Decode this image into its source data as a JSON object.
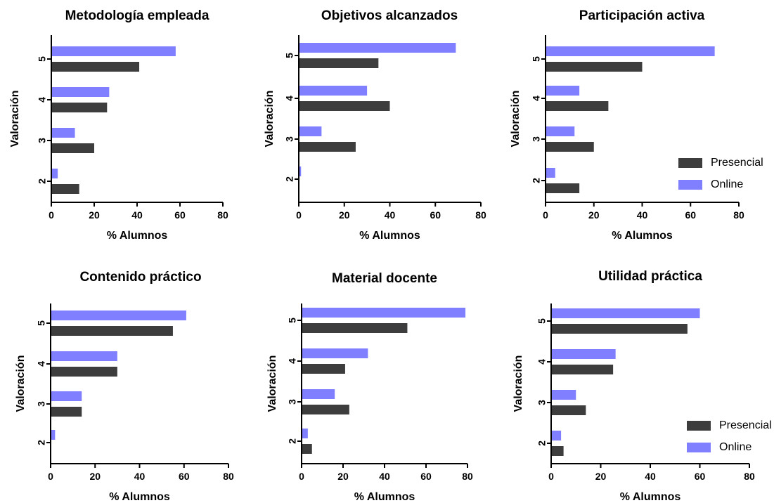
{
  "colors": {
    "presencial": "#3d3d3d",
    "online": "#7f7fff"
  },
  "chart_data": [
    {
      "type": "bar",
      "orientation": "horizontal",
      "title": "Metodología empleada",
      "xlabel": "% Alumnos",
      "ylabel": "Valoración",
      "categories": [
        "5",
        "4",
        "3",
        "2"
      ],
      "xlim": [
        0,
        80
      ],
      "xticks": [
        "0",
        "20",
        "40",
        "60",
        "80"
      ],
      "series": [
        {
          "name": "Online",
          "values": [
            58,
            27,
            11,
            3
          ]
        },
        {
          "name": "Presencial",
          "values": [
            41,
            26,
            20,
            13
          ]
        }
      ],
      "legend": null
    },
    {
      "type": "bar",
      "orientation": "horizontal",
      "title": "Objetivos alcanzados",
      "xlabel": "% Alumnos",
      "ylabel": "Valoración",
      "categories": [
        "5",
        "4",
        "3",
        "2"
      ],
      "xlim": [
        0,
        80
      ],
      "xticks": [
        "0",
        "20",
        "40",
        "60",
        "80"
      ],
      "series": [
        {
          "name": "Online",
          "values": [
            69,
            30,
            10,
            1
          ]
        },
        {
          "name": "Presencial",
          "values": [
            35,
            40,
            25,
            0
          ]
        }
      ],
      "legend": null
    },
    {
      "type": "bar",
      "orientation": "horizontal",
      "title": "Participación activa",
      "xlabel": "% Alumnos",
      "ylabel": "Valoración",
      "categories": [
        "5",
        "4",
        "3",
        "2"
      ],
      "xlim": [
        0,
        80
      ],
      "xticks": [
        "0",
        "20",
        "40",
        "60",
        "80"
      ],
      "series": [
        {
          "name": "Online",
          "values": [
            70,
            14,
            12,
            4
          ]
        },
        {
          "name": "Presencial",
          "values": [
            40,
            26,
            20,
            14
          ]
        }
      ],
      "legend": {
        "position": "bottom-right",
        "entries": [
          "Presencial",
          "Online"
        ]
      }
    },
    {
      "type": "bar",
      "orientation": "horizontal",
      "title": "Contenido práctico",
      "xlabel": "% Alumnos",
      "ylabel": "Valoración",
      "categories": [
        "5",
        "4",
        "3",
        "2"
      ],
      "xlim": [
        0,
        80
      ],
      "xticks": [
        "0",
        "20",
        "40",
        "60",
        "80"
      ],
      "series": [
        {
          "name": "Online",
          "values": [
            61,
            30,
            14,
            2
          ]
        },
        {
          "name": "Presencial",
          "values": [
            55,
            30,
            14,
            0
          ]
        }
      ],
      "legend": null
    },
    {
      "type": "bar",
      "orientation": "horizontal",
      "title": "Material docente",
      "xlabel": "% Alumnos",
      "ylabel": "Valoración",
      "categories": [
        "5",
        "4",
        "3",
        "2"
      ],
      "xlim": [
        0,
        80
      ],
      "xticks": [
        "0",
        "20",
        "40",
        "60",
        "80"
      ],
      "series": [
        {
          "name": "Online",
          "values": [
            79,
            32,
            16,
            3
          ]
        },
        {
          "name": "Presencial",
          "values": [
            51,
            21,
            23,
            5
          ]
        }
      ],
      "legend": null
    },
    {
      "type": "bar",
      "orientation": "horizontal",
      "title": "Utilidad práctica",
      "xlabel": "% Alumnos",
      "ylabel": "Valoración",
      "categories": [
        "5",
        "4",
        "3",
        "2"
      ],
      "xlim": [
        0,
        80
      ],
      "xticks": [
        "0",
        "20",
        "40",
        "60",
        "80"
      ],
      "series": [
        {
          "name": "Online",
          "values": [
            60,
            26,
            10,
            4
          ]
        },
        {
          "name": "Presencial",
          "values": [
            55,
            25,
            14,
            5
          ]
        }
      ],
      "legend": {
        "position": "bottom-right",
        "entries": [
          "Presencial",
          "Online"
        ]
      }
    }
  ]
}
